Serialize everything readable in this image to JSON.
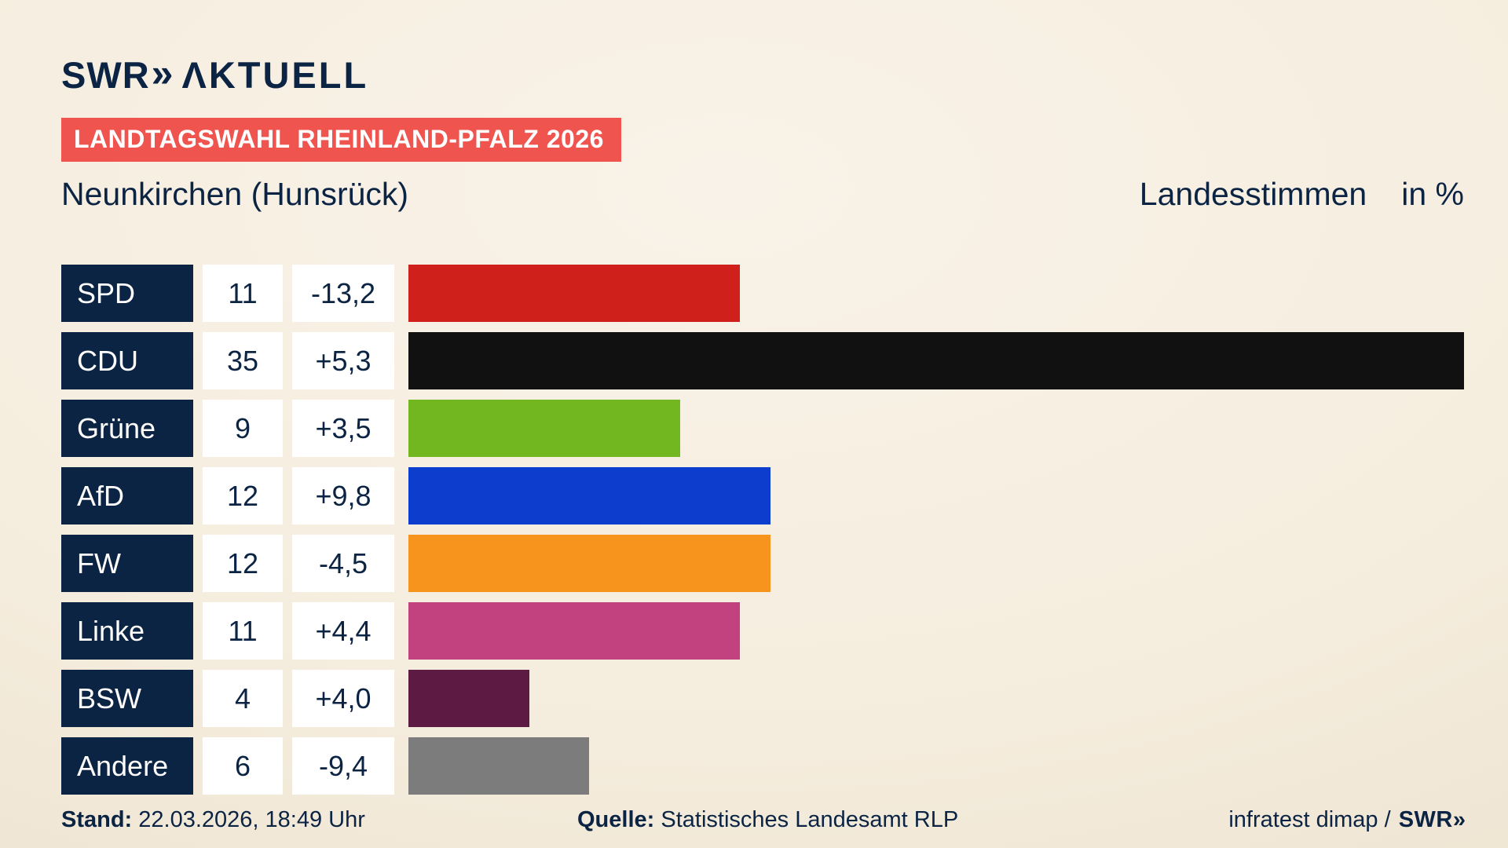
{
  "brand": {
    "swr": "SWR",
    "chevrons": "»",
    "aktuell": "ΛKTUELL"
  },
  "badge": "LANDTAGSWAHL RHEINLAND-PFALZ 2026",
  "header": {
    "title": "Neunkirchen (Hunsrück)",
    "measure": "Landesstimmen",
    "unit": "in %"
  },
  "chart_data": {
    "type": "bar",
    "orientation": "horizontal",
    "title": "Landtagswahl Rheinland-Pfalz 2026 – Neunkirchen (Hunsrück) – Landesstimmen in %",
    "unit": "%",
    "xlim": [
      0,
      35
    ],
    "grid": false,
    "legend": false,
    "categories": [
      "SPD",
      "CDU",
      "Grüne",
      "AfD",
      "FW",
      "Linke",
      "BSW",
      "Andere"
    ],
    "values": [
      11,
      35,
      9,
      12,
      12,
      11,
      4,
      6
    ],
    "changes": [
      "-13,2",
      "+5,3",
      "+3,5",
      "+9,8",
      "-4,5",
      "+4,4",
      "+4,0",
      "-9,4"
    ],
    "colors": [
      "#d0201c",
      "#111111",
      "#72b71f",
      "#0d3dcc",
      "#f7941d",
      "#c2417f",
      "#5d1a42",
      "#7c7c7c"
    ]
  },
  "footer": {
    "stand_label": "Stand:",
    "stand_value": "22.03.2026, 18:49 Uhr",
    "quelle_label": "Quelle:",
    "quelle_value": "Statistisches Landesamt RLP",
    "credit_text": "infratest dimap /",
    "credit_brand": "SWR",
    "credit_chevrons": "»"
  },
  "colors": {
    "navy": "#0c2444",
    "badge_red": "#f0544e",
    "background": "#f5edde",
    "box_white": "#ffffff"
  }
}
